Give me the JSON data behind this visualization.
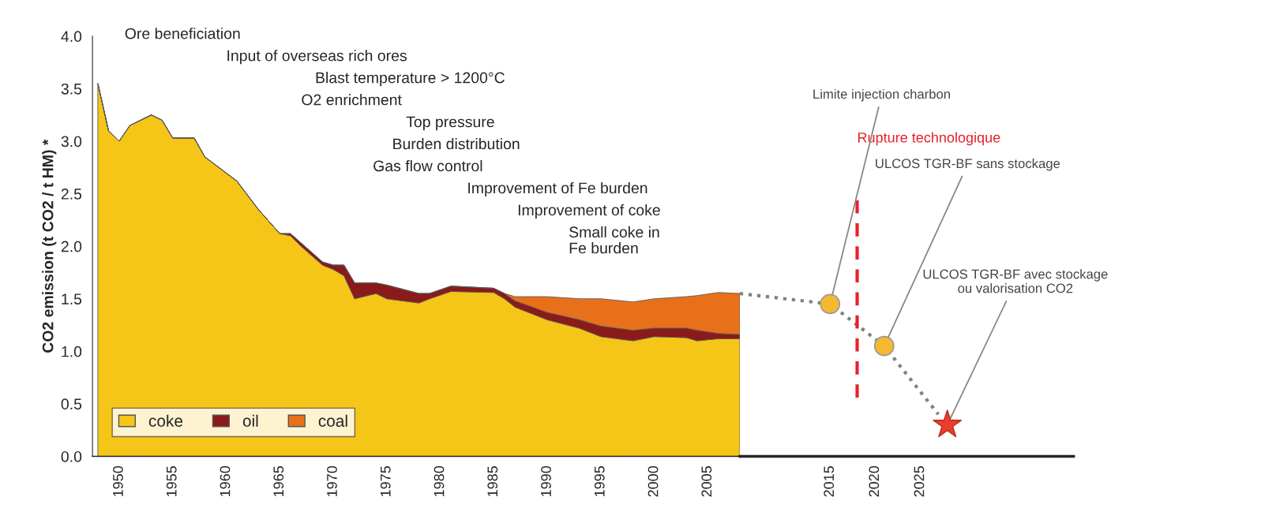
{
  "chart_data": [
    {
      "type": "area",
      "stacked": true,
      "ylabel": "CO2 emission (t CO2 / t HM) *",
      "legend": "bottom left",
      "grid": false,
      "x": [
        1948,
        1949,
        1950,
        1951,
        1953,
        1954,
        1955,
        1957,
        1958,
        1961,
        1963,
        1965,
        1966,
        1967,
        1969,
        1970,
        1971,
        1972,
        1974,
        1975,
        1978,
        1979,
        1981,
        1985,
        1986,
        1987,
        1990,
        1993,
        1995,
        1998,
        2000,
        2003,
        2004,
        2006,
        2008
      ],
      "series": [
        {
          "name": "coke",
          "color": "#f5c518",
          "values": [
            3.55,
            3.1,
            3.0,
            3.15,
            3.25,
            3.2,
            3.03,
            3.03,
            2.85,
            2.62,
            2.35,
            2.12,
            2.1,
            2.0,
            1.82,
            1.78,
            1.72,
            1.5,
            1.55,
            1.5,
            1.46,
            1.5,
            1.57,
            1.56,
            1.5,
            1.42,
            1.3,
            1.22,
            1.14,
            1.1,
            1.14,
            1.13,
            1.1,
            1.12,
            1.12
          ]
        },
        {
          "name": "oil",
          "color": "#8b1a1a",
          "values": [
            0,
            0,
            0,
            0,
            0,
            0,
            0,
            0,
            0,
            0,
            0,
            0,
            0.02,
            0.03,
            0.03,
            0.04,
            0.1,
            0.15,
            0.1,
            0.13,
            0.09,
            0.05,
            0.05,
            0.04,
            0.05,
            0.06,
            0.07,
            0.08,
            0.1,
            0.1,
            0.08,
            0.09,
            0.1,
            0.05,
            0.04
          ]
        },
        {
          "name": "coal",
          "color": "#e8701a",
          "values": [
            0,
            0,
            0,
            0,
            0,
            0,
            0,
            0,
            0,
            0,
            0,
            0,
            0,
            0,
            0,
            0,
            0,
            0,
            0,
            0,
            0,
            0,
            0,
            0,
            0,
            0.04,
            0.15,
            0.2,
            0.26,
            0.27,
            0.28,
            0.3,
            0.33,
            0.39,
            0.39
          ]
        }
      ],
      "xlim": [
        1947.5,
        2008
      ],
      "ylim": [
        0,
        4.0
      ],
      "xticks": [
        1950,
        1955,
        1960,
        1965,
        1970,
        1975,
        1980,
        1985,
        1990,
        1995,
        2000,
        2005
      ],
      "yticks": [
        {
          "value": 0,
          "label": "0.0"
        },
        {
          "value": 0.5,
          "label": "0.5"
        },
        {
          "value": 1,
          "label": "1.0"
        },
        {
          "value": 1.5,
          "label": "1.5"
        },
        {
          "value": 2,
          "label": "2.0"
        },
        {
          "value": 2.5,
          "label": "2.5"
        },
        {
          "value": 3,
          "label": "3.0"
        },
        {
          "value": 3.5,
          "label": "3.5"
        },
        {
          "value": 4,
          "label": "4.0"
        }
      ],
      "annotations": [
        "Ore beneficiation",
        "Input of overseas rich ores",
        "Blast temperature > 1200°C",
        "O2 enrichment",
        "Top pressure",
        "Burden distribution",
        "Gas flow control",
        "Improvement of Fe burden",
        "Improvement of coke",
        "Small coke in\nFe burden"
      ]
    },
    {
      "type": "scatter",
      "tick_labels": "x",
      "xlim": [
        2005,
        2042
      ],
      "ylim": [
        0,
        4.0
      ],
      "xticks": [
        2015,
        2020,
        2025
      ],
      "series": [
        {
          "type": "line",
          "color": "#808080",
          "line_style": "dotted",
          "marker": "none",
          "x": [
            2005,
            2015,
            2021,
            2027
          ],
          "values": [
            1.55,
            1.45,
            1.05,
            0.4
          ]
        },
        {
          "type": "scatter",
          "color": "#f5b82e",
          "marker": "circle",
          "x": [
            2015,
            2021
          ],
          "values": [
            1.45,
            1.05
          ]
        },
        {
          "type": "scatter",
          "color": "#e8402a",
          "marker": "star",
          "x": [
            2028
          ],
          "values": [
            0.3
          ]
        }
      ],
      "ref_lines": [
        {
          "axis": "x",
          "value": 2018,
          "label": "Rupture technologique",
          "color": "#e8202a",
          "line_style": "dashed"
        }
      ],
      "annotations": [
        {
          "text": "Limite injection charbon",
          "x": 2015,
          "y": 1.45
        },
        {
          "text": "ULCOS TGR-BF sans stockage",
          "x": 2021,
          "y": 1.05
        },
        {
          "text": "ULCOS TGR-BF avec stockage\nou valorisation CO2",
          "x": 2028,
          "y": 0.3
        }
      ]
    }
  ]
}
